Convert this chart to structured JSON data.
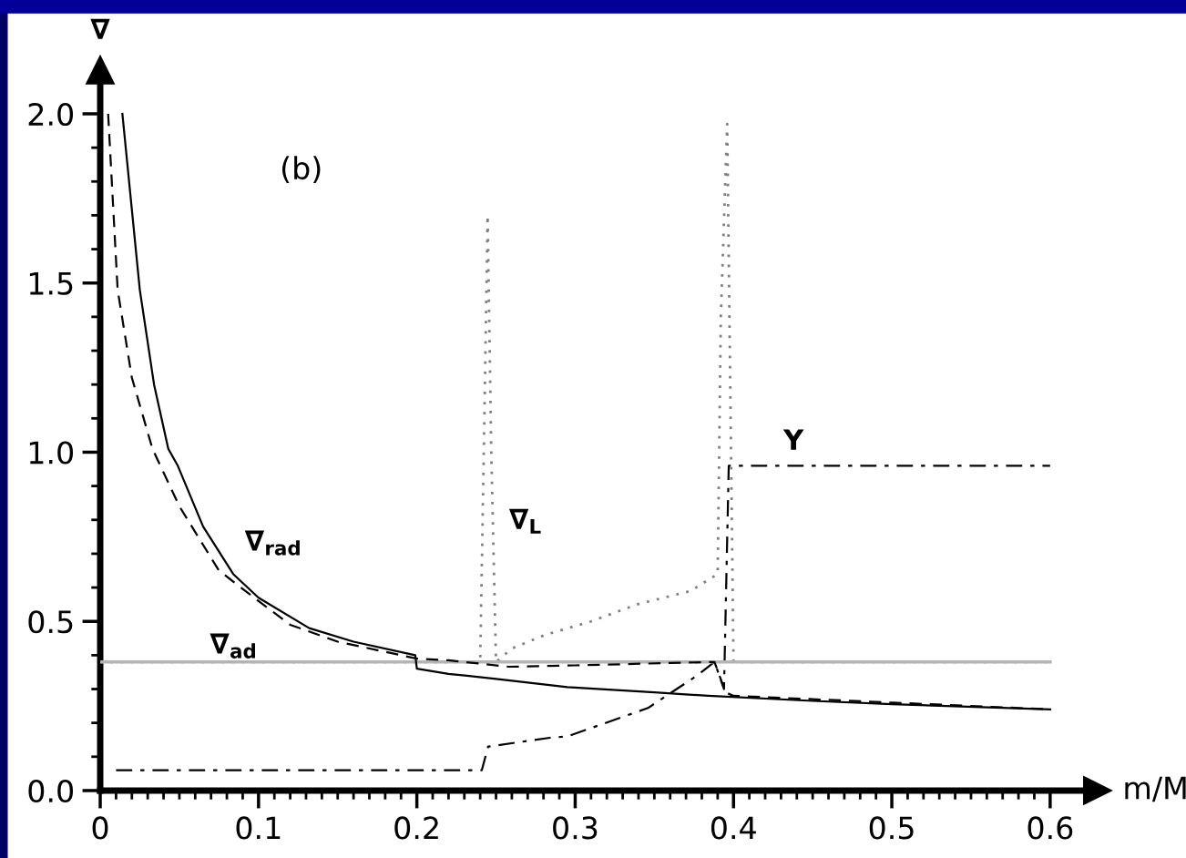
{
  "chart_data": {
    "type": "line",
    "xlabel": "m/M",
    "ylabel": "∇",
    "annotations": [
      "(b)"
    ],
    "xlim": [
      0,
      0.63
    ],
    "ylim": [
      0,
      2.13
    ],
    "xticks": [
      0,
      {
        "value": 0.01,
        "label": null
      },
      {
        "value": 0.02,
        "label": null
      },
      {
        "value": 0.03,
        "label": null
      },
      {
        "value": 0.04,
        "label": null
      },
      {
        "value": 0.05,
        "label": null
      },
      {
        "value": 0.06,
        "label": null
      },
      {
        "value": 0.07,
        "label": null
      },
      {
        "value": 0.08,
        "label": null
      },
      {
        "value": 0.09,
        "label": null
      },
      {
        "value": 0.1,
        "label": "0.1"
      },
      {
        "value": 0.11,
        "label": null
      },
      {
        "value": 0.12,
        "label": null
      },
      {
        "value": 0.13,
        "label": null
      },
      {
        "value": 0.14,
        "label": null
      },
      {
        "value": 0.15,
        "label": null
      },
      {
        "value": 0.16,
        "label": null
      },
      {
        "value": 0.17,
        "label": null
      },
      {
        "value": 0.18,
        "label": null
      },
      {
        "value": 0.19,
        "label": null
      },
      {
        "value": 0.2,
        "label": "0.2"
      },
      {
        "value": 0.21,
        "label": null
      },
      {
        "value": 0.22,
        "label": null
      },
      {
        "value": 0.23,
        "label": null
      },
      {
        "value": 0.24,
        "label": null
      },
      {
        "value": 0.25,
        "label": null
      },
      {
        "value": 0.26,
        "label": null
      },
      {
        "value": 0.27,
        "label": null
      },
      {
        "value": 0.28,
        "label": null
      },
      {
        "value": 0.29,
        "label": null
      },
      {
        "value": 0.3,
        "label": "0.3"
      },
      {
        "value": 0.31,
        "label": null
      },
      {
        "value": 0.32,
        "label": null
      },
      {
        "value": 0.33,
        "label": null
      },
      {
        "value": 0.34,
        "label": null
      },
      {
        "value": 0.35,
        "label": null
      },
      {
        "value": 0.36,
        "label": null
      },
      {
        "value": 0.37,
        "label": null
      },
      {
        "value": 0.38,
        "label": null
      },
      {
        "value": 0.39,
        "label": null
      },
      {
        "value": 0.4,
        "label": "0.4"
      },
      {
        "value": 0.41,
        "label": null
      },
      {
        "value": 0.42,
        "label": null
      },
      {
        "value": 0.43,
        "label": null
      },
      {
        "value": 0.44,
        "label": null
      },
      {
        "value": 0.45,
        "label": null
      },
      {
        "value": 0.46,
        "label": null
      },
      {
        "value": 0.47,
        "label": null
      },
      {
        "value": 0.48,
        "label": null
      },
      {
        "value": 0.49,
        "label": null
      },
      {
        "value": 0.5,
        "label": "0.5"
      },
      {
        "value": 0.51,
        "label": null
      },
      {
        "value": 0.52,
        "label": null
      },
      {
        "value": 0.53,
        "label": null
      },
      {
        "value": 0.54,
        "label": null
      },
      {
        "value": 0.55,
        "label": null
      },
      {
        "value": 0.56,
        "label": null
      },
      {
        "value": 0.57,
        "label": null
      },
      {
        "value": 0.58,
        "label": null
      },
      {
        "value": 0.59,
        "label": null
      },
      {
        "value": 0.6,
        "label": "0.6"
      }
    ],
    "yticks": [
      {
        "value": 0,
        "label": "0.0"
      },
      {
        "value": 0.1,
        "label": null
      },
      {
        "value": 0.2,
        "label": null
      },
      {
        "value": 0.3,
        "label": null
      },
      {
        "value": 0.4,
        "label": null
      },
      0.5,
      {
        "value": 0.6,
        "label": null
      },
      {
        "value": 0.7,
        "label": null
      },
      {
        "value": 0.8,
        "label": null
      },
      {
        "value": 0.9,
        "label": null
      },
      {
        "value": 1,
        "label": "1.0"
      },
      {
        "value": 1.1,
        "label": null
      },
      {
        "value": 1.2,
        "label": null
      },
      {
        "value": 1.3,
        "label": null
      },
      {
        "value": 1.4,
        "label": null
      },
      1.5,
      {
        "value": 1.6,
        "label": null
      },
      {
        "value": 1.7,
        "label": null
      },
      {
        "value": 1.8,
        "label": null
      },
      {
        "value": 1.9,
        "label": null
      },
      {
        "value": 2,
        "label": "2.0"
      }
    ],
    "grid": false,
    "legend": false,
    "series": [
      {
        "name": "∇$_{rad}$",
        "color": "#000000",
        "line_style": "solid",
        "x": [
          0.014,
          0.025,
          0.034,
          0.043,
          0.049,
          0.065,
          0.084,
          0.1,
          0.132,
          0.16,
          0.199,
          0.2,
          0.22,
          0.25,
          0.295,
          0.35,
          0.384,
          0.45,
          0.5,
          0.6
        ],
        "values": [
          2.0,
          1.48,
          1.2,
          1.01,
          0.96,
          0.78,
          0.64,
          0.57,
          0.48,
          0.44,
          0.4,
          0.36,
          0.345,
          0.33,
          0.306,
          0.29,
          0.28,
          0.265,
          0.255,
          0.24
        ]
      },
      {
        "color": "#000000",
        "line_style": "dashed",
        "x": [
          0.005,
          0.011,
          0.02,
          0.033,
          0.05,
          0.075,
          0.1,
          0.12,
          0.15,
          0.19,
          0.2,
          0.22,
          0.258,
          0.3,
          0.36,
          0.388,
          0.395,
          0.4,
          0.5,
          0.6
        ],
        "values": [
          2.0,
          1.48,
          1.22,
          1.01,
          0.84,
          0.65,
          0.56,
          0.49,
          0.44,
          0.4,
          0.39,
          0.385,
          0.366,
          0.37,
          0.377,
          0.38,
          0.29,
          0.28,
          0.26,
          0.24
        ]
      },
      {
        "name": "∇$_{ad}$",
        "color": "#b4b4b4",
        "line_style": "solid",
        "x": [
          0,
          0.6
        ],
        "values": [
          0.38,
          0.38
        ]
      },
      {
        "name": "∇$_{L}$",
        "color": "#808080",
        "line_style": "dotted",
        "x": [
          0,
          0.24,
          0.243,
          0.2447,
          0.247,
          0.25,
          0.26,
          0.281,
          0.31,
          0.339,
          0.373,
          0.39,
          0.392,
          0.396,
          0.4,
          0.6
        ],
        "values": [
          0.38,
          0.38,
          1.2,
          1.7,
          1.0,
          0.38,
          0.42,
          0.46,
          0.5,
          0.55,
          0.59,
          0.64,
          1.4,
          1.97,
          0.38,
          0.38
        ]
      },
      {
        "name": "Y",
        "color": "#000000",
        "line_style": "dashdot",
        "x": [
          0.01,
          0.241,
          0.245,
          0.284,
          0.295,
          0.346,
          0.377,
          0.388,
          0.394,
          0.397,
          0.6
        ],
        "values": [
          0.06,
          0.06,
          0.13,
          0.156,
          0.16,
          0.244,
          0.34,
          0.38,
          0.3,
          0.96,
          0.96
        ]
      }
    ]
  }
}
